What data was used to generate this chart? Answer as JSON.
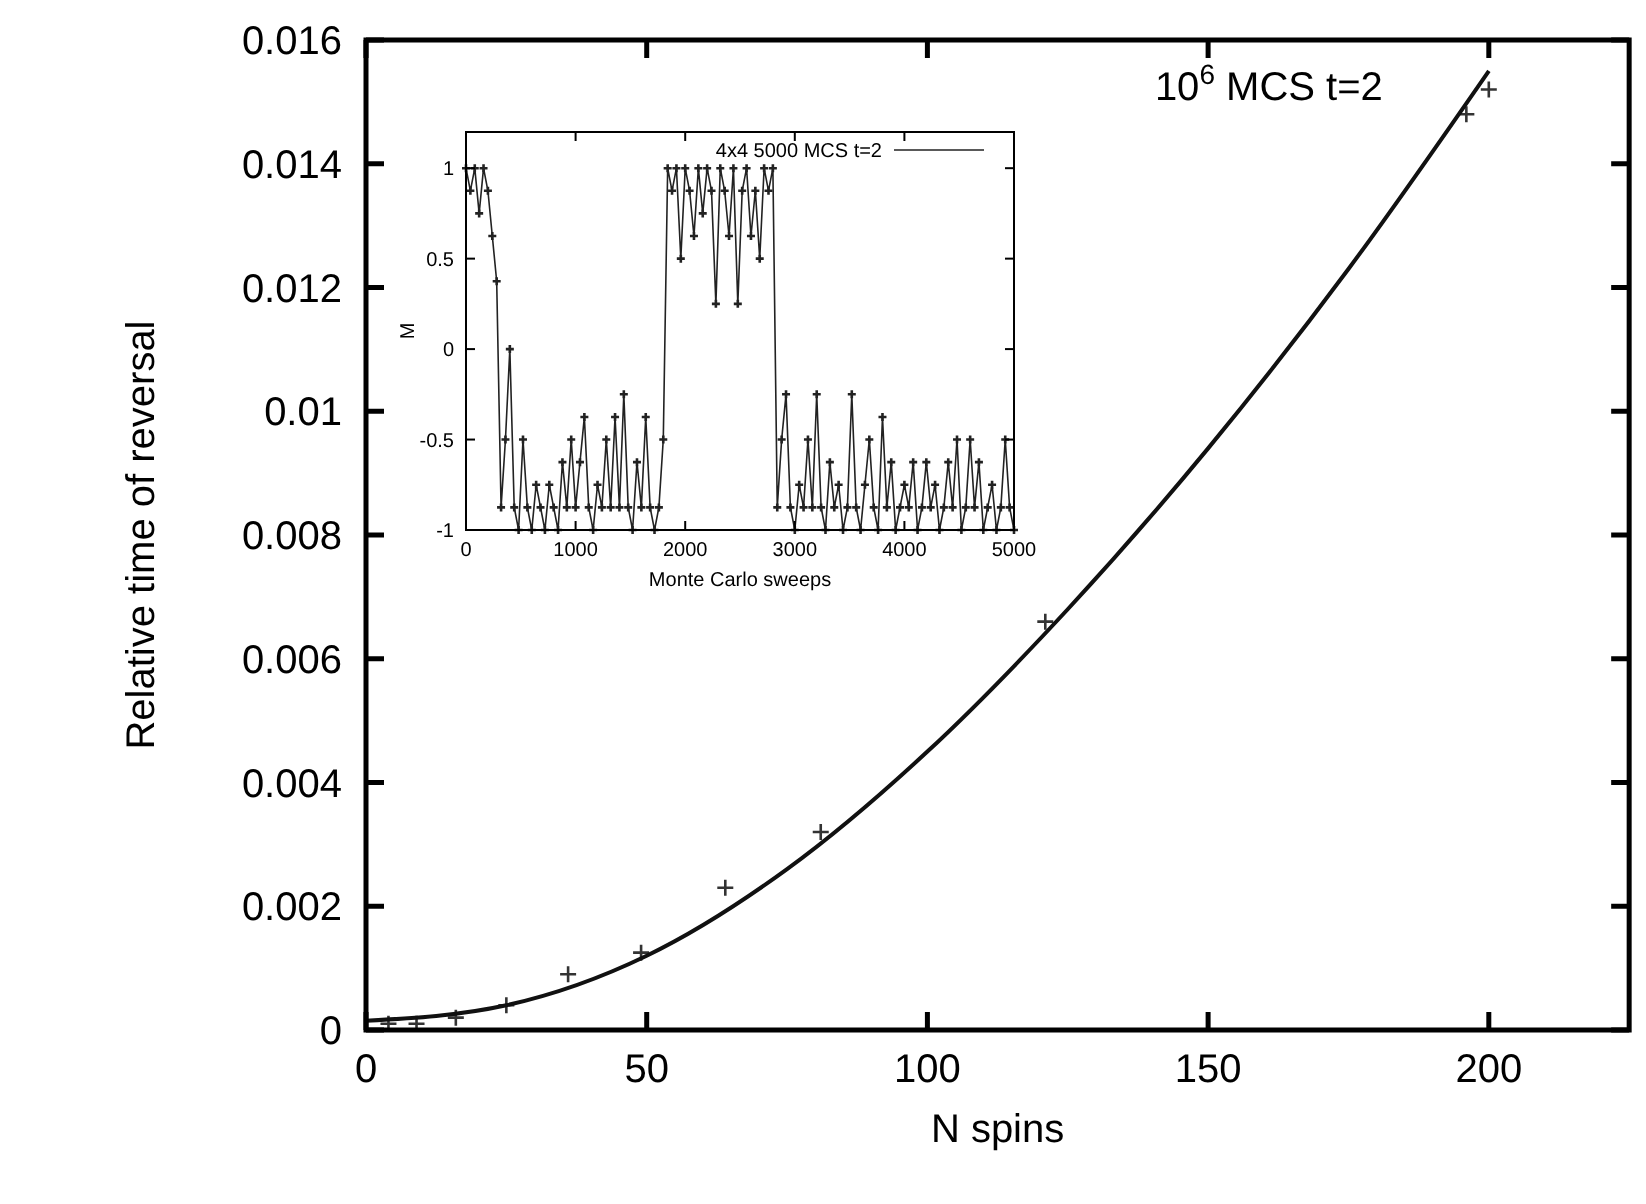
{
  "chart_data": [
    {
      "type": "scatter",
      "xlabel": "N spins",
      "ylabel": "Relative time of reversal",
      "annotations": [
        "10$^{6}$ MCS t=2"
      ],
      "xlim": [
        0,
        225
      ],
      "ylim": [
        0,
        0.016
      ],
      "xticks": [
        0,
        50,
        100,
        150,
        200
      ],
      "yticks": [
        {
          "value": 0,
          "label": "0"
        },
        {
          "value": 0.002,
          "label": "0.002"
        },
        {
          "value": 0.004,
          "label": "0.004"
        },
        {
          "value": 0.006,
          "label": "0.006"
        },
        {
          "value": 0.008,
          "label": "0.008"
        },
        {
          "value": 0.01,
          "label": "0.01"
        },
        {
          "value": 0.012,
          "label": "0.012"
        },
        {
          "value": 0.014,
          "label": "0.014"
        },
        {
          "value": 0.016,
          "label": "0.016"
        }
      ],
      "marker": "cross",
      "legend": false,
      "series": [
        {
          "color": "#333333",
          "x": [
            4,
            9,
            16,
            25,
            36,
            49,
            64,
            81,
            121,
            196,
            200
          ],
          "values": [
            0.0001,
            0.0001,
            0.0002,
            0.0004,
            0.0009,
            0.00125,
            0.0023,
            0.0032,
            0.0066,
            0.0148,
            0.0152
          ]
        },
        {
          "type": "line",
          "color": "#111111",
          "marker": "none",
          "x": [
            0,
            25,
            50,
            75,
            100,
            125,
            150,
            175,
            200
          ],
          "values": [
            0.00015,
            0.0004,
            0.0012,
            0.0026,
            0.0045,
            0.0068,
            0.0094,
            0.0123,
            0.0155
          ]
        }
      ]
    },
    {
      "type": "line",
      "xlabel": "Monte Carlo sweeps",
      "ylabel": "M",
      "xlim": [
        0,
        5000
      ],
      "ylim": [
        -1,
        1.2
      ],
      "xticks": [
        0,
        1000,
        2000,
        3000,
        4000,
        5000
      ],
      "yticks": [
        -1,
        -0.5,
        0,
        0.5,
        1
      ],
      "marker": "cross",
      "legend": "top right",
      "series": [
        {
          "name": "4x4  5000 MCS t=2",
          "color": "#222222",
          "x": [
            0,
            40,
            80,
            120,
            160,
            200,
            240,
            280,
            320,
            360,
            400,
            440,
            480,
            520,
            560,
            600,
            640,
            680,
            720,
            760,
            800,
            840,
            880,
            920,
            960,
            1000,
            1040,
            1080,
            1120,
            1160,
            1200,
            1240,
            1280,
            1320,
            1360,
            1400,
            1440,
            1480,
            1520,
            1560,
            1600,
            1640,
            1680,
            1720,
            1760,
            1800,
            1840,
            1880,
            1920,
            1960,
            2000,
            2040,
            2080,
            2120,
            2160,
            2200,
            2240,
            2280,
            2320,
            2360,
            2400,
            2440,
            2480,
            2520,
            2560,
            2600,
            2640,
            2680,
            2720,
            2760,
            2800,
            2840,
            2880,
            2920,
            2960,
            3000,
            3040,
            3080,
            3120,
            3160,
            3200,
            3240,
            3280,
            3320,
            3360,
            3400,
            3440,
            3480,
            3520,
            3560,
            3600,
            3640,
            3680,
            3720,
            3760,
            3800,
            3840,
            3880,
            3920,
            3960,
            4000,
            4040,
            4080,
            4120,
            4160,
            4200,
            4240,
            4280,
            4320,
            4360,
            4400,
            4440,
            4480,
            4520,
            4560,
            4600,
            4640,
            4680,
            4720,
            4760,
            4800,
            4840,
            4880,
            4920,
            4960,
            5000
          ],
          "values": [
            1,
            0.875,
            1,
            0.75,
            1,
            0.875,
            0.625,
            0.375,
            -0.875,
            -0.5,
            0,
            -0.875,
            -1,
            -0.5,
            -0.875,
            -1,
            -0.75,
            -0.875,
            -1,
            -0.75,
            -0.875,
            -1,
            -0.625,
            -0.875,
            -0.5,
            -0.875,
            -0.625,
            -0.375,
            -0.875,
            -1,
            -0.75,
            -0.875,
            -0.5,
            -0.875,
            -0.375,
            -0.875,
            -0.25,
            -0.875,
            -1,
            -0.625,
            -0.875,
            -0.375,
            -0.875,
            -1,
            -0.875,
            -0.5,
            1,
            0.875,
            1,
            0.5,
            1,
            0.875,
            0.625,
            1,
            0.75,
            1,
            0.875,
            0.25,
            1,
            0.875,
            0.625,
            1,
            0.25,
            0.875,
            1,
            0.625,
            0.875,
            0.5,
            1,
            0.875,
            1,
            -0.875,
            -0.5,
            -0.25,
            -0.875,
            -1,
            -0.75,
            -0.875,
            -0.5,
            -0.875,
            -0.25,
            -0.875,
            -1,
            -0.625,
            -0.875,
            -0.75,
            -1,
            -0.875,
            -0.25,
            -0.875,
            -1,
            -0.75,
            -0.5,
            -0.875,
            -1,
            -0.375,
            -0.875,
            -0.625,
            -1,
            -0.875,
            -0.75,
            -0.875,
            -0.625,
            -1,
            -0.875,
            -0.625,
            -0.875,
            -0.75,
            -1,
            -0.875,
            -0.625,
            -0.875,
            -0.5,
            -1,
            -0.875,
            -0.5,
            -0.875,
            -0.625,
            -1,
            -0.875,
            -0.75,
            -1,
            -0.875,
            -0.5,
            -0.875,
            -1
          ]
        }
      ]
    }
  ]
}
